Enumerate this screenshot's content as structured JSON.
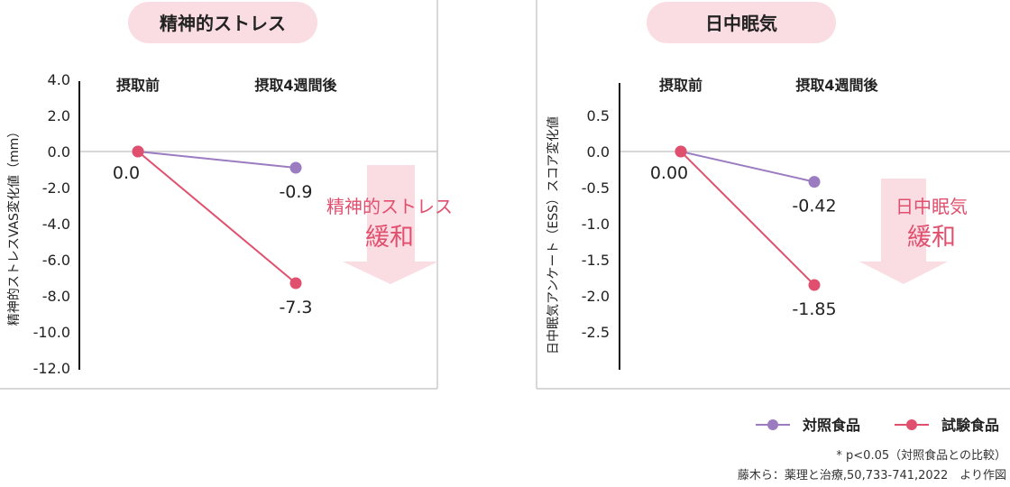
{
  "colors": {
    "control": "#9b7cc0",
    "test": "#e0506e",
    "pill": "#f9dde3",
    "arrow": "#fadde3",
    "annotation": "#e0506e"
  },
  "legend": [
    {
      "label": "対照食品",
      "color": "#9b7cc0"
    },
    {
      "label": "試験食品",
      "color": "#e0506e"
    }
  ],
  "footnote": "* p<0.05（対照食品との比較）",
  "source": "藤木ら：薬理と治療,50,733-741,2022　より作図",
  "chart_data": [
    {
      "type": "line",
      "title": "精神的ストレス",
      "ylabel": "精神的ストレスVAS変化値（mm）",
      "categories": [
        "摂取前",
        "摂取4週間後"
      ],
      "ylim": [
        -12,
        4
      ],
      "yticks": [
        "4.0",
        "2.0",
        "0.0",
        "-2.0",
        "-4.0",
        "-6.0",
        "-8.0",
        "-10.0",
        "-12.0"
      ],
      "ytick_values": [
        4,
        2,
        0,
        -2,
        -4,
        -6,
        -8,
        -10,
        -12
      ],
      "series": [
        {
          "name": "対照食品",
          "values": [
            0.0,
            -0.9
          ],
          "labels": [
            "",
            "-0.9"
          ]
        },
        {
          "name": "試験食品",
          "values": [
            0.0,
            -7.3
          ],
          "labels": [
            "0.0",
            "-7.3"
          ]
        }
      ],
      "annotation": [
        "精神的ストレス",
        "緩和"
      ]
    },
    {
      "type": "line",
      "title": "日中眠気",
      "ylabel": "日中眠気アンケート（ESS）スコア変化値",
      "categories": [
        "摂取前",
        "摂取4週間後"
      ],
      "ylim": [
        -3.0,
        0.9
      ],
      "yticks": [
        "0.5",
        "0.0",
        "-0.5",
        "-1.0",
        "-1.5",
        "-2.0",
        "-2.5"
      ],
      "ytick_values": [
        0.5,
        0,
        -0.5,
        -1,
        -1.5,
        -2,
        -2.5
      ],
      "series": [
        {
          "name": "対照食品",
          "values": [
            0.0,
            -0.42
          ],
          "labels": [
            "",
            "-0.42"
          ]
        },
        {
          "name": "試験食品",
          "values": [
            0.0,
            -1.85
          ],
          "labels": [
            "0.00",
            "-1.85"
          ]
        }
      ],
      "annotation": [
        "日中眠気",
        "緩和"
      ]
    }
  ]
}
